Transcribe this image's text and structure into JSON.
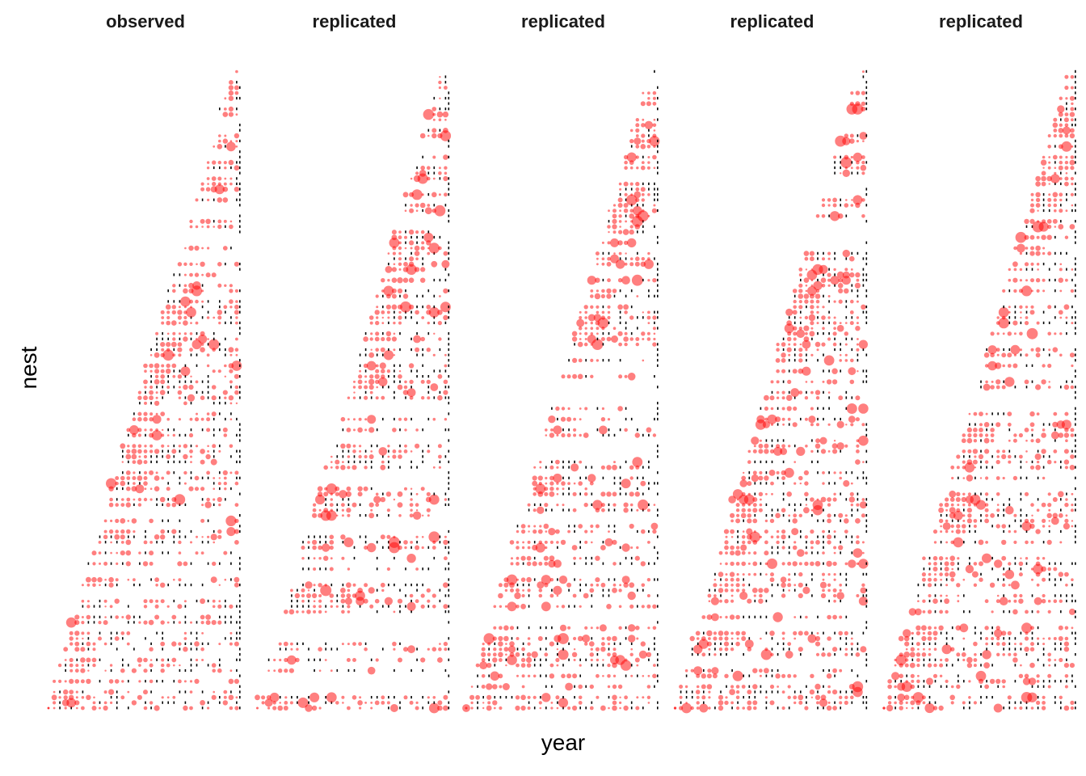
{
  "figure": {
    "xlabel": "year",
    "ylabel": "nest"
  },
  "colors": {
    "observed_point": "#ff0000",
    "absent_mark": "#000000",
    "background": "#ffffff"
  },
  "chart_data": {
    "type": "scatter",
    "xlabel": "year",
    "ylabel": "nest",
    "grid": false,
    "legend": "none",
    "point_encoding": "red circles sized by count; small black marks where a nest is monitored but empty",
    "facets": [
      {
        "title": "observed"
      },
      {
        "title": "replicated"
      },
      {
        "title": "replicated"
      },
      {
        "title": "replicated"
      },
      {
        "title": "replicated"
      }
    ]
  }
}
